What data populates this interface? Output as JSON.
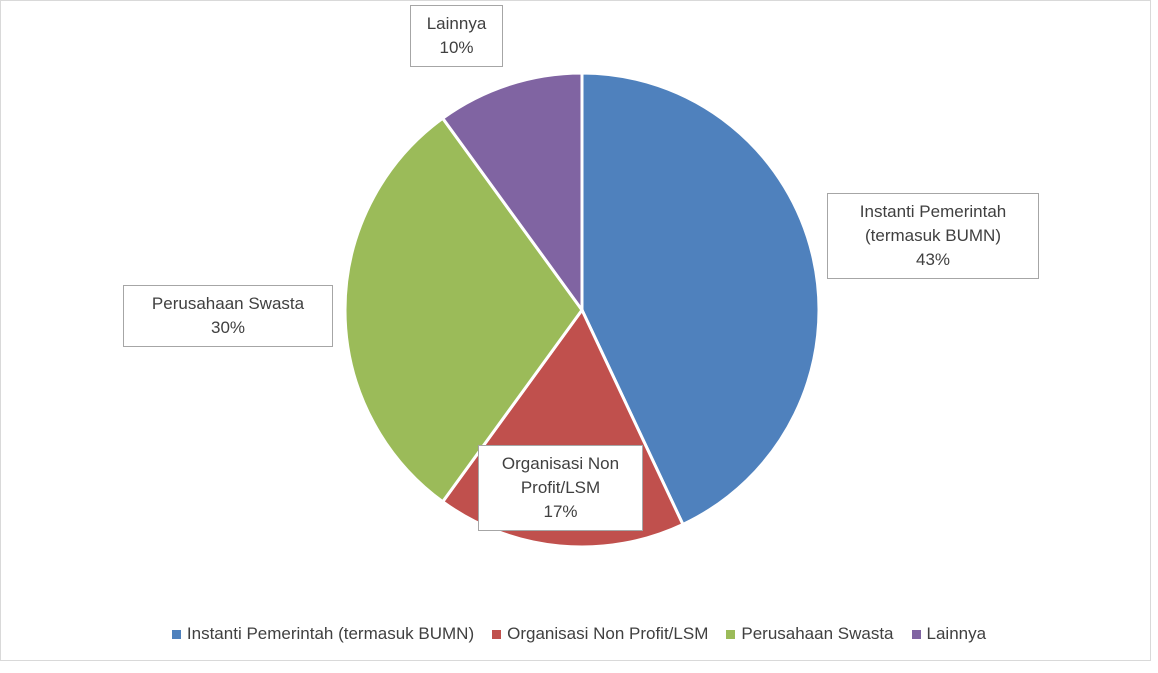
{
  "chart_data": {
    "type": "pie",
    "categories": [
      "Instanti Pemerintah (termasuk BUMN)",
      "Organisasi Non Profit/LSM",
      "Perusahaan Swasta",
      "Lainnya"
    ],
    "values": [
      43,
      17,
      30,
      10
    ],
    "value_labels": [
      "43%",
      "17%",
      "30%",
      "10%"
    ],
    "colors": [
      "#4f81bd",
      "#c0504d",
      "#9bbb59",
      "#8064a2"
    ],
    "legend": "bottom"
  }
}
